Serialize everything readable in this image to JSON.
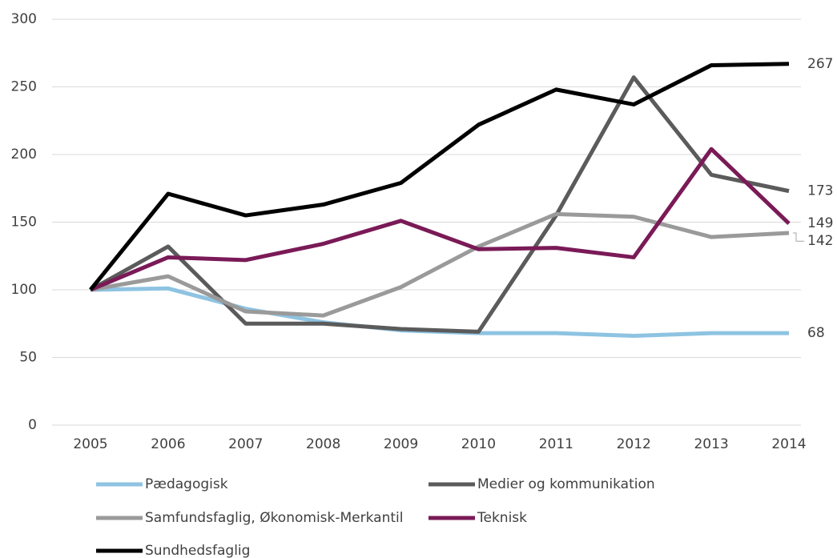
{
  "chart_data": {
    "type": "line",
    "categories": [
      "2005",
      "2006",
      "2007",
      "2008",
      "2009",
      "2010",
      "2011",
      "2012",
      "2013",
      "2014"
    ],
    "series": [
      {
        "name": "Pædagogisk",
        "color": "#8ec3e2",
        "values": [
          100,
          101,
          86,
          76,
          70,
          68,
          68,
          66,
          68,
          68
        ]
      },
      {
        "name": "Medier og kommunikation",
        "color": "#5b5b5b",
        "values": [
          100,
          132,
          75,
          75,
          71,
          69,
          155,
          257,
          185,
          173
        ]
      },
      {
        "name": "Samfundsfaglig, Økonomisk-Merkantil",
        "color": "#9a9a9a",
        "values": [
          100,
          110,
          84,
          81,
          102,
          132,
          156,
          154,
          139,
          142
        ]
      },
      {
        "name": "Teknisk",
        "color": "#7a1a57",
        "values": [
          100,
          124,
          122,
          134,
          151,
          130,
          131,
          124,
          204,
          149
        ]
      },
      {
        "name": "Sundhedsfaglig",
        "color": "#000000",
        "values": [
          100,
          171,
          155,
          163,
          179,
          222,
          248,
          237,
          266,
          267
        ]
      }
    ],
    "ylim": [
      0,
      300
    ],
    "yticks": [
      0,
      50,
      100,
      150,
      200,
      250,
      300
    ],
    "grid": true,
    "legend": "bottom"
  }
}
